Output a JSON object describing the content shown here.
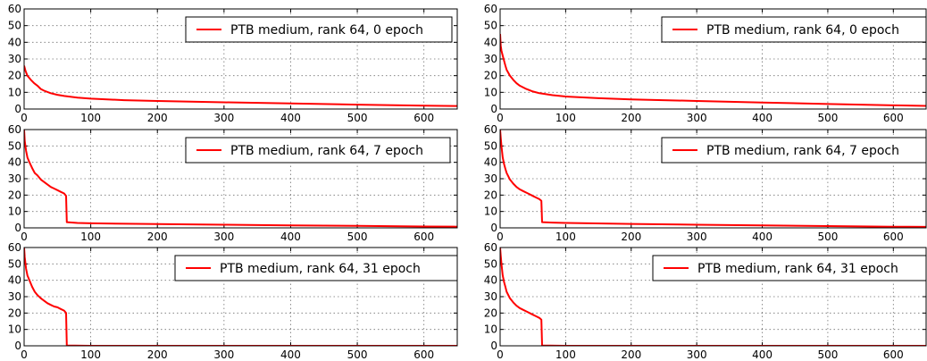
{
  "chart_data": [
    {
      "type": "line",
      "xlim": [
        0,
        650
      ],
      "ylim": [
        0,
        60
      ],
      "xticks": [
        0,
        100,
        200,
        300,
        400,
        500,
        600
      ],
      "yticks": [
        0,
        10,
        20,
        30,
        40,
        50,
        60
      ],
      "grid": true,
      "legend": "top-right",
      "series": [
        {
          "name": "PTB medium, rank 64, 0 epoch",
          "x": [
            0,
            2,
            5,
            10,
            15,
            20,
            25,
            30,
            40,
            50,
            60,
            80,
            100,
            150,
            200,
            300,
            400,
            500,
            600,
            650
          ],
          "y": [
            26,
            23,
            20,
            17.5,
            15.5,
            14,
            12,
            11,
            9.5,
            8.5,
            7.8,
            6.8,
            6.2,
            5.3,
            4.8,
            4.0,
            3.3,
            2.6,
            2.0,
            1.8
          ]
        }
      ]
    },
    {
      "type": "line",
      "xlim": [
        0,
        650
      ],
      "ylim": [
        0,
        60
      ],
      "xticks": [
        0,
        100,
        200,
        300,
        400,
        500,
        600
      ],
      "yticks": [
        0,
        10,
        20,
        30,
        40,
        50,
        60
      ],
      "grid": true,
      "legend": "top-right",
      "series": [
        {
          "name": "PTB medium, rank 64, 0 epoch",
          "x": [
            0,
            1,
            2,
            4,
            6,
            8,
            10,
            15,
            20,
            25,
            30,
            40,
            50,
            60,
            80,
            100,
            150,
            200,
            300,
            400,
            500,
            600,
            650
          ],
          "y": [
            45,
            38,
            35,
            32,
            29,
            26,
            23.5,
            20,
            17.5,
            15.5,
            14,
            12,
            10.5,
            9.5,
            8.3,
            7.5,
            6.5,
            5.8,
            4.8,
            3.9,
            3.0,
            2.2,
            1.9
          ]
        }
      ]
    },
    {
      "type": "line",
      "xlim": [
        0,
        650
      ],
      "ylim": [
        0,
        60
      ],
      "xticks": [
        0,
        100,
        200,
        300,
        400,
        500,
        600
      ],
      "yticks": [
        0,
        10,
        20,
        30,
        40,
        50,
        60
      ],
      "grid": true,
      "legend": "top-right",
      "series": [
        {
          "name": "PTB medium, rank 64, 7 epoch",
          "x": [
            0,
            1,
            3,
            5,
            8,
            12,
            16,
            20,
            25,
            30,
            35,
            40,
            45,
            50,
            55,
            60,
            63,
            64,
            80,
            100,
            200,
            300,
            400,
            500,
            600,
            650
          ],
          "y": [
            60,
            53,
            47,
            43,
            40,
            36.5,
            33.5,
            32,
            29.5,
            28,
            26.5,
            25,
            24,
            23,
            22,
            21,
            19.5,
            3.5,
            3.0,
            2.8,
            2.3,
            1.9,
            1.5,
            1.2,
            0.8,
            0.7
          ]
        }
      ]
    },
    {
      "type": "line",
      "xlim": [
        0,
        650
      ],
      "ylim": [
        0,
        60
      ],
      "xticks": [
        0,
        100,
        200,
        300,
        400,
        500,
        600
      ],
      "yticks": [
        0,
        10,
        20,
        30,
        40,
        50,
        60
      ],
      "grid": true,
      "legend": "top-right",
      "series": [
        {
          "name": "PTB medium, rank 64, 7 epoch",
          "x": [
            0,
            1,
            2,
            4,
            6,
            8,
            10,
            15,
            20,
            25,
            30,
            35,
            40,
            45,
            50,
            55,
            60,
            63,
            64,
            80,
            100,
            200,
            300,
            400,
            500,
            600,
            650
          ],
          "y": [
            60,
            55,
            50,
            43,
            39,
            36,
            33.5,
            29.5,
            27,
            25,
            23.5,
            22.5,
            21.5,
            20.5,
            19.5,
            18.5,
            17.5,
            16.5,
            3.5,
            3.2,
            3.0,
            2.4,
            1.9,
            1.5,
            1.1,
            0.7,
            0.6
          ]
        }
      ]
    },
    {
      "type": "line",
      "xlim": [
        0,
        650
      ],
      "ylim": [
        0,
        60
      ],
      "xticks": [
        0,
        100,
        200,
        300,
        400,
        500,
        600
      ],
      "yticks": [
        0,
        10,
        20,
        30,
        40,
        50,
        60
      ],
      "grid": true,
      "legend": "top-right",
      "series": [
        {
          "name": "PTB medium, rank 64, 31 epoch",
          "x": [
            0,
            1,
            3,
            5,
            8,
            12,
            16,
            20,
            25,
            30,
            35,
            40,
            45,
            50,
            55,
            60,
            63,
            64,
            100,
            200,
            300,
            400,
            500,
            600,
            650
          ],
          "y": [
            60,
            54,
            47,
            43,
            40,
            36,
            33,
            31,
            29,
            27.5,
            26,
            25,
            24,
            23.5,
            22.5,
            21.5,
            20,
            0.2,
            0,
            0,
            0,
            0,
            0,
            0,
            0
          ]
        }
      ]
    },
    {
      "type": "line",
      "xlim": [
        0,
        650
      ],
      "ylim": [
        0,
        60
      ],
      "xticks": [
        0,
        100,
        200,
        300,
        400,
        500,
        600
      ],
      "yticks": [
        0,
        10,
        20,
        30,
        40,
        50,
        60
      ],
      "grid": true,
      "legend": "top-right",
      "series": [
        {
          "name": "PTB medium, rank 64, 31 epoch",
          "x": [
            0,
            1,
            2,
            4,
            6,
            8,
            10,
            15,
            20,
            25,
            30,
            35,
            40,
            45,
            50,
            55,
            60,
            63,
            64,
            100,
            200,
            300,
            400,
            500,
            600,
            650
          ],
          "y": [
            60,
            55,
            50,
            43,
            39,
            36,
            33,
            29,
            26.5,
            24.5,
            23,
            22,
            21,
            20,
            19,
            18,
            17,
            16,
            0.2,
            0,
            0,
            0,
            0,
            0,
            0,
            0
          ]
        }
      ]
    }
  ]
}
